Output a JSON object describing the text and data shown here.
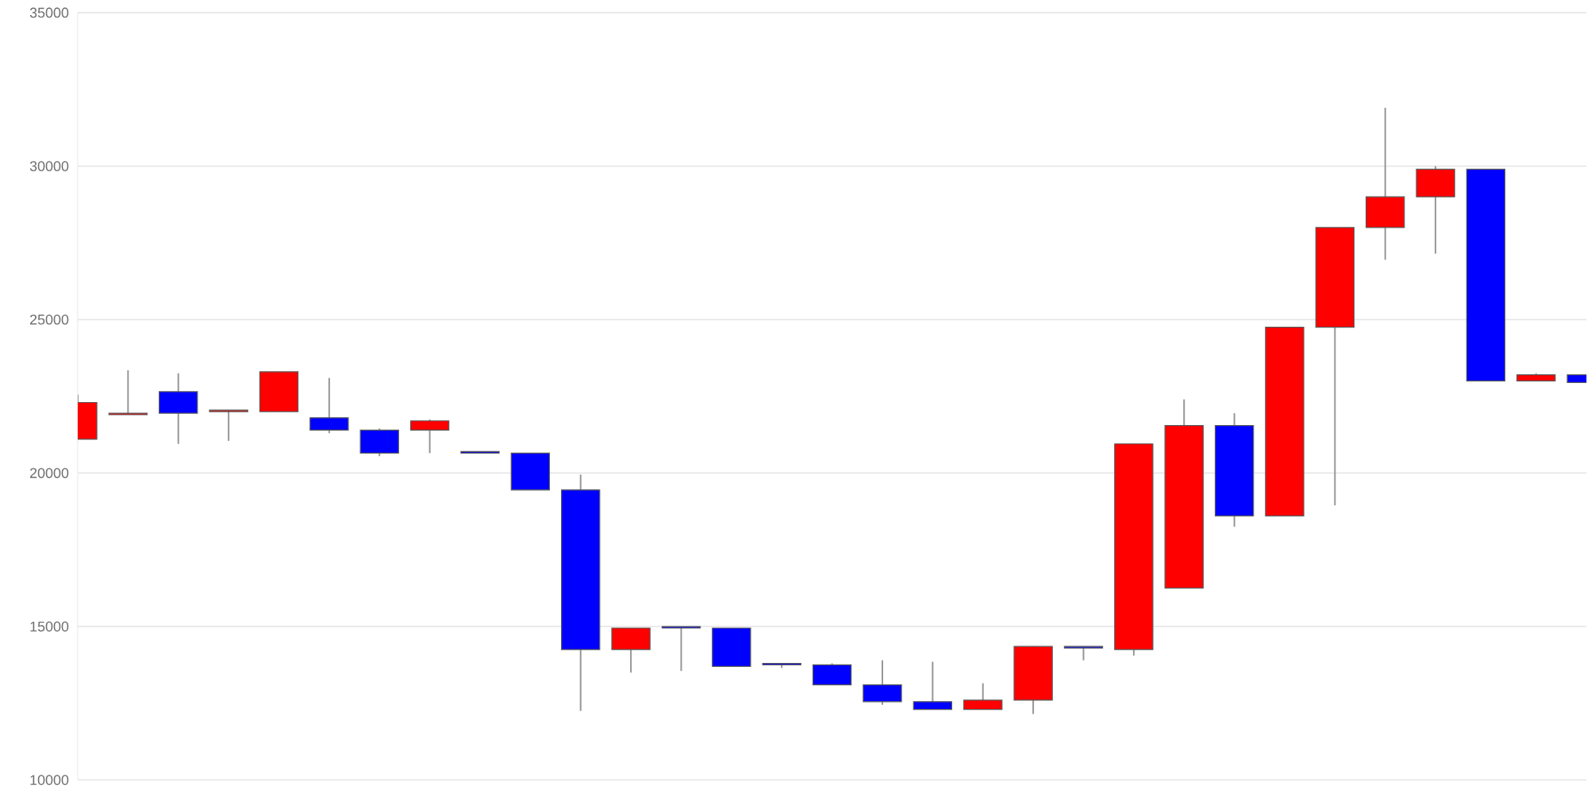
{
  "chart_data": {
    "type": "candlestick",
    "categories": [
      null,
      null,
      null,
      null,
      null,
      null,
      null,
      null,
      null,
      null,
      null,
      null,
      null,
      null,
      null,
      null,
      null,
      null,
      null,
      null,
      null,
      null,
      null,
      null,
      null,
      null,
      null,
      null,
      null,
      null,
      null
    ],
    "ohlc": [
      [
        21100,
        22550,
        21100,
        22300
      ],
      [
        21900,
        23350,
        21900,
        21950
      ],
      [
        22650,
        23250,
        20950,
        21950
      ],
      [
        22000,
        22050,
        21050,
        22050
      ],
      [
        22000,
        23300,
        22000,
        23300
      ],
      [
        21800,
        23100,
        21300,
        21400
      ],
      [
        21400,
        21450,
        20550,
        20650
      ],
      [
        21400,
        21750,
        20650,
        21700
      ],
      [
        20700,
        20700,
        20650,
        20650
      ],
      [
        20650,
        20650,
        19450,
        19450
      ],
      [
        19450,
        19950,
        12250,
        14250
      ],
      [
        14250,
        14950,
        13500,
        14950
      ],
      [
        15000,
        15000,
        13550,
        14950
      ],
      [
        14950,
        14950,
        13700,
        13700
      ],
      [
        13800,
        13800,
        13650,
        13750
      ],
      [
        13750,
        13800,
        13100,
        13100
      ],
      [
        13100,
        13900,
        12450,
        12550
      ],
      [
        12550,
        13850,
        12300,
        12300
      ],
      [
        12300,
        13150,
        12300,
        12600
      ],
      [
        12600,
        14350,
        12150,
        14350
      ],
      [
        14350,
        14350,
        13900,
        14300
      ],
      [
        14250,
        20950,
        14050,
        20950
      ],
      [
        16250,
        22400,
        16250,
        21550
      ],
      [
        21550,
        21950,
        18250,
        18600
      ],
      [
        18600,
        24750,
        18600,
        24750
      ],
      [
        24750,
        28000,
        18950,
        28000
      ],
      [
        28000,
        31900,
        26950,
        29000
      ],
      [
        29000,
        30000,
        27150,
        29900
      ],
      [
        29900,
        29900,
        23000,
        23000
      ],
      [
        23000,
        23250,
        23000,
        23200
      ],
      [
        23200,
        23200,
        22950,
        22950
      ]
    ],
    "colors": [
      "#ff0000",
      "#ff0000",
      "#0000ff",
      "#ff0000",
      "#ff0000",
      "#0000ff",
      "#0000ff",
      "#ff0000",
      "#0000ff",
      "#0000ff",
      "#0000ff",
      "#ff0000",
      "#0000ff",
      "#0000ff",
      "#0000ff",
      "#0000ff",
      "#0000ff",
      "#0000ff",
      "#ff0000",
      "#ff0000",
      "#0000ff",
      "#ff0000",
      "#ff0000",
      "#0000ff",
      "#ff0000",
      "#ff0000",
      "#ff0000",
      "#ff0000",
      "#0000ff",
      "#ff0000",
      "#0000ff"
    ],
    "ylim": [
      10000,
      35000
    ],
    "yticks": [
      10000,
      15000,
      20000,
      25000,
      30000,
      35000
    ],
    "grid": "y"
  }
}
